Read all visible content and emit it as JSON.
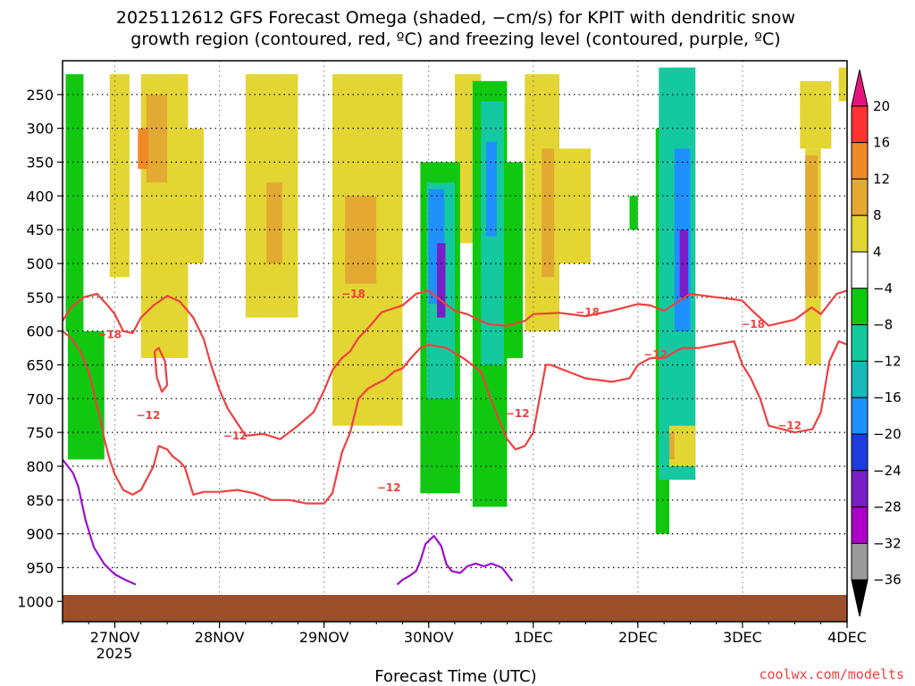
{
  "chart_data": {
    "type": "heatmap",
    "title_lines": [
      "2025112612 GFS Forecast Omega (shaded, −cm/s) for KPIT with dendritic snow",
      "growth region (contoured, red, ºC) and freezing level (contoured, purple, ºC)"
    ],
    "xlabel": "Forecast Time (UTC)",
    "ylabel": "",
    "credit": "coolwx.com/modelts",
    "x_ticks": [
      "27NOV",
      "28NOV",
      "29NOV",
      "30NOV",
      "1DEC",
      "2DEC",
      "3DEC",
      "4DEC"
    ],
    "x_sub_label": "2025",
    "x_range_days": [
      -0.5,
      7.0
    ],
    "y_ticks": [
      250,
      300,
      350,
      400,
      450,
      500,
      550,
      600,
      650,
      700,
      750,
      800,
      850,
      900,
      950,
      1000
    ],
    "y_range_hpa": [
      200,
      1030
    ],
    "grid": true,
    "colorbar": {
      "levels": [
        "20",
        "16",
        "12",
        "8",
        "4",
        "−4",
        "−8",
        "−12",
        "−16",
        "−20",
        "−24",
        "−28",
        "−32",
        "−36"
      ],
      "colors": [
        "#e8147d",
        "#ff3333",
        "#f08a28",
        "#e3a932",
        "#e3d532",
        "#ffffff",
        "#10c810",
        "#14c9a0",
        "#18b9b9",
        "#1e90ff",
        "#1e3cdc",
        "#7a1ec8",
        "#aa00c8",
        "#9b9b9b",
        "#000000"
      ]
    },
    "contour_colors": {
      "dgz": "#f04040",
      "freezing": "#9a10d0",
      "ground": "#9b4f2a"
    },
    "contour_labels": {
      "dgz": [
        "−18",
        "−12",
        "−12",
        "−18",
        "−12",
        "−12",
        "−18",
        "−12",
        "−18",
        "−12"
      ]
    },
    "series": [
      {
        "key": "dgz_top_a",
        "x": [
          -0.5,
          -0.42,
          -0.3,
          -0.17,
          -0.08,
          0.0,
          0.08,
          0.17,
          0.25,
          0.37,
          0.5,
          0.62,
          0.75,
          0.85,
          0.92,
          1.0,
          1.08,
          1.25,
          1.42,
          1.58,
          1.75,
          1.9,
          2.0,
          2.08,
          2.17,
          2.25,
          2.33,
          2.42,
          2.55,
          2.75,
          2.88,
          3.0
        ],
        "y": [
          585,
          565,
          550,
          545,
          560,
          575,
          600,
          603,
          580,
          562,
          548,
          556,
          580,
          612,
          650,
          687,
          715,
          755,
          752,
          760,
          740,
          720,
          688,
          658,
          640,
          630,
          610,
          596,
          572,
          562,
          545,
          540
        ]
      },
      {
        "key": "dgz_top_b",
        "x": [
          3.0,
          3.12,
          3.25,
          3.37,
          3.5,
          3.58,
          3.75,
          3.92,
          4.0,
          4.25,
          4.5,
          4.75,
          5.0,
          5.12,
          5.25,
          5.5,
          5.75,
          5.92,
          6.0,
          6.08,
          6.25,
          6.5,
          6.66,
          6.75,
          6.9,
          7.0
        ],
        "y": [
          540,
          555,
          570,
          575,
          585,
          590,
          592,
          585,
          575,
          573,
          578,
          570,
          560,
          562,
          570,
          545,
          550,
          553,
          555,
          568,
          592,
          583,
          565,
          575,
          545,
          540
        ]
      },
      {
        "key": "dgz_bot_a",
        "x": [
          -0.5,
          -0.42,
          -0.33,
          -0.25,
          -0.17,
          -0.1,
          -0.05,
          0.0,
          0.08,
          0.17,
          0.25,
          0.37,
          0.42,
          0.5,
          0.55,
          0.62,
          0.67,
          0.75,
          0.85,
          1.0,
          1.17,
          1.33,
          1.5,
          1.67,
          1.83,
          2.0,
          2.08,
          2.17,
          2.25,
          2.33,
          2.42,
          2.5,
          2.58,
          2.67,
          2.75,
          2.83,
          2.92,
          3.0
        ],
        "y": [
          600,
          610,
          630,
          660,
          710,
          760,
          790,
          812,
          835,
          842,
          835,
          800,
          770,
          775,
          785,
          793,
          802,
          842,
          838,
          838,
          835,
          840,
          850,
          850,
          855,
          855,
          840,
          780,
          750,
          700,
          685,
          678,
          672,
          660,
          655,
          640,
          625,
          620
        ]
      },
      {
        "key": "dgz_bot_b",
        "x": [
          3.0,
          3.17,
          3.33,
          3.5,
          3.58,
          3.67,
          3.75,
          3.83,
          3.92,
          4.0,
          4.12,
          4.17,
          4.25,
          4.5,
          4.75,
          4.92,
          5.0,
          5.12,
          5.25,
          5.42,
          5.58,
          5.75,
          5.92,
          6.0,
          6.08,
          6.17,
          6.25,
          6.5,
          6.67,
          6.75,
          6.83,
          6.92,
          7.0
        ],
        "y": [
          620,
          625,
          640,
          660,
          695,
          730,
          760,
          775,
          770,
          750,
          650,
          650,
          655,
          670,
          675,
          670,
          650,
          640,
          640,
          625,
          625,
          620,
          615,
          650,
          670,
          700,
          740,
          750,
          745,
          720,
          645,
          615,
          620
        ]
      },
      {
        "key": "dgz_small",
        "x": [
          0.38,
          0.42,
          0.48,
          0.5,
          0.45,
          0.4,
          0.38
        ],
        "y": [
          630,
          625,
          645,
          680,
          690,
          668,
          630
        ]
      },
      {
        "key": "frz_left",
        "x": [
          -0.5,
          -0.45,
          -0.4,
          -0.35,
          -0.28,
          -0.2,
          -0.1,
          0.0,
          0.1,
          0.2
        ],
        "y": [
          790,
          800,
          810,
          830,
          880,
          920,
          945,
          960,
          968,
          975
        ]
      },
      {
        "key": "frz_mid",
        "x": [
          2.7,
          2.75,
          2.82,
          2.88,
          2.92,
          2.97,
          3.05,
          3.12,
          3.17,
          3.22,
          3.3,
          3.37,
          3.45,
          3.53,
          3.6,
          3.7,
          3.8
        ],
        "y": [
          975,
          968,
          962,
          955,
          940,
          915,
          903,
          918,
          945,
          955,
          958,
          948,
          944,
          948,
          944,
          950,
          970
        ]
      }
    ],
    "shade_regions": [
      {
        "color": "#e3d532",
        "x": [
          -0.05,
          0.14,
          0.14,
          -0.05
        ],
        "y": [
          220,
          220,
          520,
          520
        ]
      },
      {
        "color": "#e3d532",
        "x": [
          0.25,
          0.7,
          0.7,
          0.25
        ],
        "y": [
          220,
          220,
          640,
          640
        ]
      },
      {
        "color": "#e3d532",
        "x": [
          0.7,
          0.85,
          0.85,
          0.7
        ],
        "y": [
          300,
          300,
          500,
          500
        ]
      },
      {
        "color": "#e3d532",
        "x": [
          1.25,
          1.75,
          1.75,
          1.25
        ],
        "y": [
          220,
          220,
          580,
          580
        ]
      },
      {
        "color": "#e3d532",
        "x": [
          2.08,
          2.75,
          2.75,
          2.08
        ],
        "y": [
          220,
          220,
          740,
          740
        ]
      },
      {
        "color": "#e3d532",
        "x": [
          2.6,
          2.72,
          2.72,
          2.6
        ],
        "y": [
          350,
          350,
          560,
          560
        ]
      },
      {
        "color": "#e3d532",
        "x": [
          3.25,
          3.5,
          3.5,
          3.25
        ],
        "y": [
          220,
          220,
          470,
          470
        ]
      },
      {
        "color": "#e3d532",
        "x": [
          3.92,
          4.25,
          4.25,
          3.92
        ],
        "y": [
          220,
          220,
          600,
          600
        ]
      },
      {
        "color": "#e3d532",
        "x": [
          4.25,
          4.55,
          4.55,
          4.25
        ],
        "y": [
          330,
          330,
          500,
          500
        ]
      },
      {
        "color": "#e3d532",
        "x": [
          6.55,
          6.85,
          6.85,
          6.55
        ],
        "y": [
          230,
          230,
          330,
          330
        ]
      },
      {
        "color": "#e3d532",
        "x": [
          6.6,
          6.75,
          6.75,
          6.6
        ],
        "y": [
          330,
          330,
          650,
          650
        ]
      },
      {
        "color": "#e3d532",
        "x": [
          6.92,
          7.0,
          7.0,
          6.92
        ],
        "y": [
          210,
          210,
          260,
          260
        ]
      },
      {
        "color": "#e3a932",
        "x": [
          0.3,
          0.5,
          0.5,
          0.3
        ],
        "y": [
          250,
          250,
          380,
          380
        ]
      },
      {
        "color": "#e3a932",
        "x": [
          2.2,
          2.5,
          2.5,
          2.2
        ],
        "y": [
          400,
          400,
          530,
          530
        ]
      },
      {
        "color": "#e3a932",
        "x": [
          1.45,
          1.6,
          1.6,
          1.45
        ],
        "y": [
          380,
          380,
          500,
          500
        ]
      },
      {
        "color": "#e3a932",
        "x": [
          4.08,
          4.2,
          4.2,
          4.08
        ],
        "y": [
          330,
          330,
          520,
          520
        ]
      },
      {
        "color": "#e3a932",
        "x": [
          6.6,
          6.72,
          6.72,
          6.6
        ],
        "y": [
          340,
          340,
          550,
          550
        ]
      },
      {
        "color": "#f08a28",
        "x": [
          0.22,
          0.32,
          0.32,
          0.22
        ],
        "y": [
          300,
          300,
          360,
          360
        ]
      },
      {
        "color": "#10c810",
        "x": [
          -0.47,
          -0.3,
          -0.3,
          -0.47
        ],
        "y": [
          220,
          220,
          600,
          600
        ]
      },
      {
        "color": "#10c810",
        "x": [
          -0.45,
          -0.1,
          -0.1,
          -0.45
        ],
        "y": [
          600,
          600,
          790,
          790
        ]
      },
      {
        "color": "#10c810",
        "x": [
          2.92,
          3.3,
          3.3,
          2.92
        ],
        "y": [
          350,
          350,
          840,
          840
        ]
      },
      {
        "color": "#10c810",
        "x": [
          3.42,
          3.75,
          3.75,
          3.42
        ],
        "y": [
          230,
          230,
          860,
          860
        ]
      },
      {
        "color": "#10c810",
        "x": [
          3.75,
          3.9,
          3.9,
          3.75
        ],
        "y": [
          350,
          350,
          640,
          640
        ]
      },
      {
        "color": "#10c810",
        "x": [
          5.17,
          5.3,
          5.3,
          5.17
        ],
        "y": [
          300,
          300,
          900,
          900
        ]
      },
      {
        "color": "#10c810",
        "x": [
          4.92,
          5.0,
          5.0,
          4.92
        ],
        "y": [
          400,
          400,
          450,
          450
        ]
      },
      {
        "color": "#14c9a0",
        "x": [
          2.98,
          3.25,
          3.25,
          2.98
        ],
        "y": [
          380,
          380,
          700,
          700
        ]
      },
      {
        "color": "#14c9a0",
        "x": [
          3.5,
          3.72,
          3.72,
          3.5
        ],
        "y": [
          260,
          260,
          650,
          650
        ]
      },
      {
        "color": "#14c9a0",
        "x": [
          5.2,
          5.55,
          5.55,
          5.2
        ],
        "y": [
          210,
          210,
          820,
          820
        ]
      },
      {
        "color": "#1e90ff",
        "x": [
          3.55,
          3.65,
          3.65,
          3.55
        ],
        "y": [
          320,
          320,
          460,
          460
        ]
      },
      {
        "color": "#1e90ff",
        "x": [
          5.35,
          5.5,
          5.5,
          5.35
        ],
        "y": [
          330,
          330,
          600,
          600
        ]
      },
      {
        "color": "#1e90ff",
        "x": [
          3.0,
          3.15,
          3.15,
          3.0
        ],
        "y": [
          390,
          390,
          560,
          560
        ]
      },
      {
        "color": "#7a1ec8",
        "x": [
          3.08,
          3.16,
          3.16,
          3.08
        ],
        "y": [
          470,
          470,
          580,
          580
        ]
      },
      {
        "color": "#7a1ec8",
        "x": [
          5.4,
          5.48,
          5.48,
          5.4
        ],
        "y": [
          450,
          450,
          550,
          550
        ]
      },
      {
        "color": "#e3d532",
        "x": [
          5.3,
          5.55,
          5.55,
          5.3
        ],
        "y": [
          740,
          740,
          800,
          800
        ]
      },
      {
        "color": "#e3a932",
        "x": [
          5.3,
          5.35,
          5.35,
          5.3
        ],
        "y": [
          750,
          750,
          790,
          790
        ]
      }
    ]
  }
}
